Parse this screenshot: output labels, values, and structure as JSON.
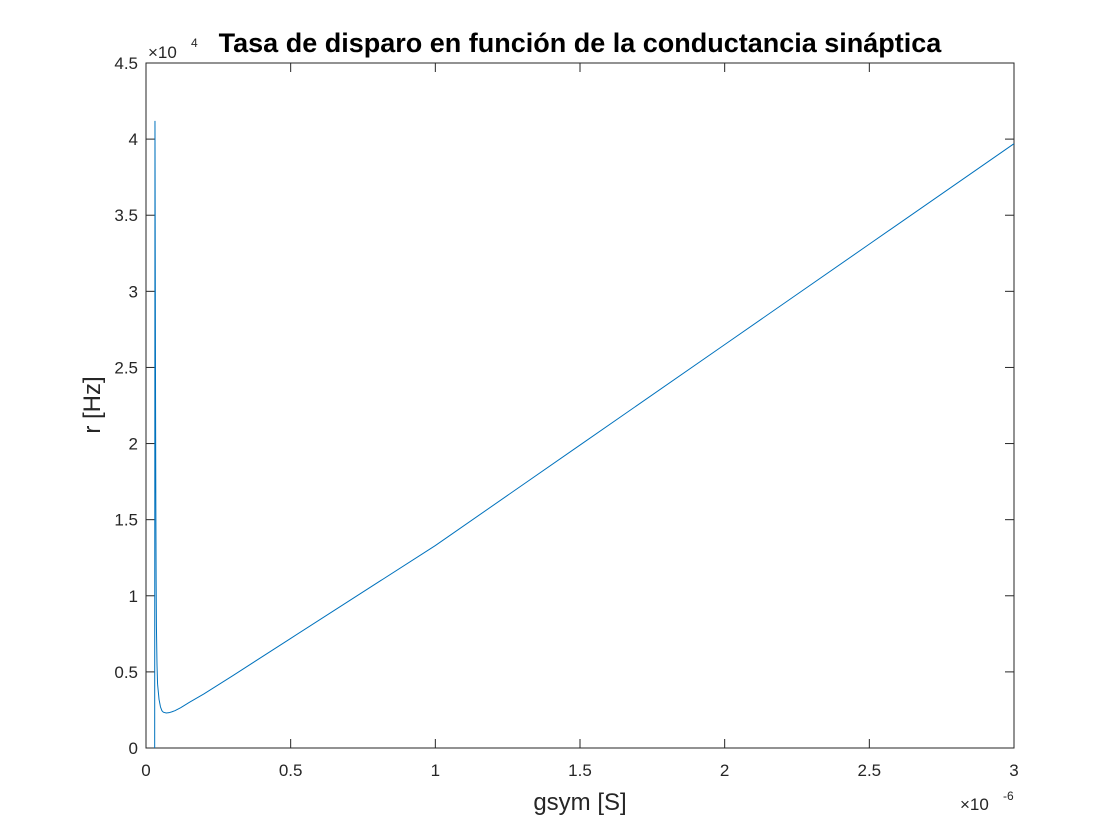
{
  "chart_data": {
    "type": "line",
    "title": "Tasa de disparo en función de la conductancia sináptica",
    "xlabel": "gsym [S]",
    "ylabel": "r [Hz]",
    "x_multiplier": {
      "base": "×10",
      "exponent": "-6"
    },
    "y_multiplier": {
      "base": "×10",
      "exponent": "4"
    },
    "xlim": [
      0,
      3
    ],
    "ylim": [
      0,
      4.5
    ],
    "x_ticks": [
      0,
      0.5,
      1,
      1.5,
      2,
      2.5,
      3
    ],
    "x_tick_labels": [
      "0",
      "0.5",
      "1",
      "1.5",
      "2",
      "2.5",
      "3"
    ],
    "y_ticks": [
      0,
      0.5,
      1,
      1.5,
      2,
      2.5,
      3,
      3.5,
      4,
      4.5
    ],
    "y_tick_labels": [
      "0",
      "0.5",
      "1",
      "1.5",
      "2",
      "2.5",
      "3",
      "3.5",
      "4",
      "4.5"
    ],
    "grid": false,
    "series": [
      {
        "color": "#0072BD",
        "x": [
          0.03,
          0.031,
          0.032,
          0.033,
          0.034,
          0.035,
          0.036,
          0.038,
          0.04,
          0.045,
          0.05,
          0.055,
          0.06,
          0.07,
          0.08,
          0.09,
          0.1,
          0.12,
          0.15,
          0.2,
          0.3,
          0.5,
          1.0,
          1.5,
          2.0,
          2.5,
          3.0
        ],
        "y": [
          0.0,
          4.12,
          3.2,
          2.3,
          1.6,
          1.1,
          0.8,
          0.55,
          0.42,
          0.32,
          0.27,
          0.245,
          0.235,
          0.23,
          0.232,
          0.238,
          0.245,
          0.265,
          0.3,
          0.355,
          0.475,
          0.72,
          1.33,
          1.99,
          2.65,
          3.31,
          3.97
        ]
      }
    ]
  }
}
